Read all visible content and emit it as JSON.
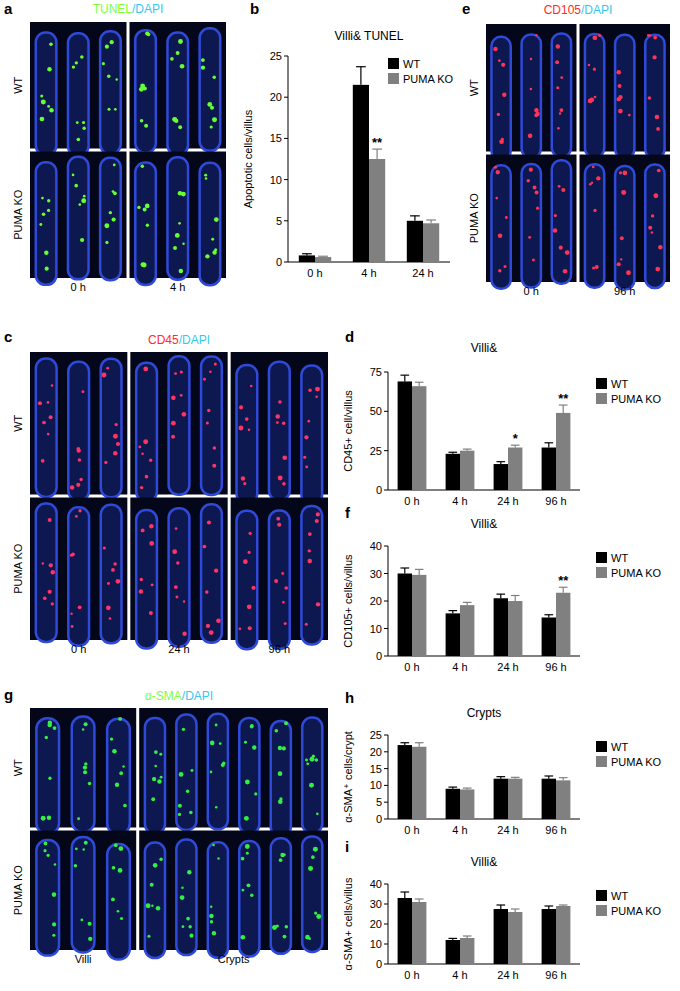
{
  "chart_data": [
    {
      "panel": "b",
      "type": "bar",
      "title": "Villi& TUNEL",
      "y_label": "Apoptotic cells/villus",
      "categories": [
        "0 h",
        "4 h",
        "24 h"
      ],
      "series": [
        {
          "name": "WT",
          "color": "#000000",
          "values": [
            0.8,
            21.5,
            5.0
          ],
          "errors": [
            0.2,
            2.2,
            0.6
          ],
          "significance": [
            null,
            null,
            null
          ]
        },
        {
          "name": "PUMA KO",
          "color": "#808080",
          "values": [
            0.6,
            12.5,
            4.7
          ],
          "errors": [
            0.1,
            1.2,
            0.4
          ],
          "significance": [
            null,
            "**",
            null
          ]
        }
      ],
      "ylim": [
        0,
        25
      ],
      "yticks": [
        0,
        5,
        10,
        15,
        20,
        25
      ],
      "legend": "upper right"
    },
    {
      "panel": "d",
      "type": "bar",
      "title": "Villi&",
      "y_label": "CD45+ cell/villus",
      "categories": [
        "0 h",
        "4 h",
        "24 h",
        "96 h"
      ],
      "series": [
        {
          "name": "WT",
          "color": "#000000",
          "values": [
            69,
            23,
            16.5,
            27
          ],
          "errors": [
            4,
            1,
            1.5,
            3
          ],
          "significance": [
            null,
            null,
            null,
            null
          ]
        },
        {
          "name": "PUMA KO",
          "color": "#808080",
          "values": [
            66,
            25,
            27,
            49
          ],
          "errors": [
            2.5,
            1,
            1.5,
            5
          ],
          "significance": [
            null,
            null,
            "*",
            "**"
          ]
        }
      ],
      "ylim": [
        0,
        75
      ],
      "yticks": [
        0,
        25,
        50,
        75
      ],
      "legend": "right"
    },
    {
      "panel": "f",
      "type": "bar",
      "title": "Villi&",
      "y_label": "CD105+ cells/villus",
      "categories": [
        "0 h",
        "4 h",
        "24 h",
        "96 h"
      ],
      "series": [
        {
          "name": "WT",
          "color": "#000000",
          "values": [
            30,
            15.5,
            21,
            14
          ],
          "errors": [
            2,
            1,
            1.5,
            1
          ],
          "significance": [
            null,
            null,
            null,
            null
          ]
        },
        {
          "name": "PUMA KO",
          "color": "#808080",
          "values": [
            29.5,
            18.5,
            20,
            23
          ],
          "errors": [
            2,
            1,
            2,
            2
          ],
          "significance": [
            null,
            null,
            null,
            "**"
          ]
        }
      ],
      "ylim": [
        0,
        40
      ],
      "yticks": [
        0,
        10,
        20,
        30,
        40
      ],
      "legend": "right"
    },
    {
      "panel": "h",
      "type": "bar",
      "title": "Crypts",
      "y_label": "α-SMA⁺ cells/crypt",
      "categories": [
        "0 h",
        "4 h",
        "24 h",
        "96 h"
      ],
      "series": [
        {
          "name": "WT",
          "color": "#000000",
          "values": [
            22,
            9,
            12,
            12
          ],
          "errors": [
            0.7,
            0.5,
            0.6,
            0.8
          ],
          "significance": [
            null,
            null,
            null,
            null
          ]
        },
        {
          "name": "PUMA KO",
          "color": "#808080",
          "values": [
            21.5,
            8.8,
            12,
            11.5
          ],
          "errors": [
            1.2,
            0.4,
            0.4,
            0.8
          ],
          "significance": [
            null,
            null,
            null,
            null
          ]
        }
      ],
      "ylim": [
        0,
        25
      ],
      "yticks": [
        0,
        5,
        10,
        15,
        20,
        25
      ],
      "legend": "right"
    },
    {
      "panel": "i",
      "type": "bar",
      "title": "Villi&",
      "y_label": "α-SMA+ cells/villus",
      "categories": [
        "0 h",
        "4 h",
        "24 h",
        "96 h"
      ],
      "series": [
        {
          "name": "WT",
          "color": "#000000",
          "values": [
            33,
            12,
            27.5,
            27.5
          ],
          "errors": [
            3,
            0.8,
            2,
            1.5
          ],
          "significance": [
            null,
            null,
            null,
            null
          ]
        },
        {
          "name": "PUMA KO",
          "color": "#808080",
          "values": [
            31,
            13,
            26,
            29
          ],
          "errors": [
            1.5,
            1,
            1.5,
            0.5
          ],
          "significance": [
            null,
            null,
            null,
            null
          ]
        }
      ],
      "ylim": [
        0,
        40
      ],
      "yticks": [
        0,
        10,
        20,
        30,
        40
      ],
      "legend": "right"
    }
  ],
  "image_panels": [
    {
      "panel": "a",
      "title_parts": [
        {
          "text": "TUNEL",
          "color": "#7cff3a"
        },
        {
          "text": "/DAPI",
          "color": "#35c8f0"
        }
      ],
      "rows": [
        "WT",
        "PUMA KO"
      ],
      "columns": [
        "0 h",
        "4 h"
      ],
      "color": "#66ff33"
    },
    {
      "panel": "c",
      "title_parts": [
        {
          "text": "CD45",
          "color": "#ff2a2a"
        },
        {
          "text": "/DAPI",
          "color": "#35c8f0"
        }
      ],
      "rows": [
        "WT",
        "PUMA KO"
      ],
      "columns": [
        "0 h",
        "24 h",
        "96 h"
      ],
      "color": "#ff3366"
    },
    {
      "panel": "e",
      "title_parts": [
        {
          "text": "CD105",
          "color": "#ff2a2a"
        },
        {
          "text": "/DAPI",
          "color": "#35c8f0"
        }
      ],
      "rows": [
        "WT",
        "PUMA KO"
      ],
      "columns": [
        "0 h",
        "96 h"
      ],
      "color": "#ff3355"
    },
    {
      "panel": "g",
      "title_parts": [
        {
          "text": "α-SMA",
          "color": "#7cff3a"
        },
        {
          "text": "/DAPI",
          "color": "#35c8f0"
        }
      ],
      "rows": [
        "WT",
        "PUMA KO"
      ],
      "columns": [
        "Villi",
        "Crypts"
      ],
      "color": "#33ee44"
    }
  ]
}
